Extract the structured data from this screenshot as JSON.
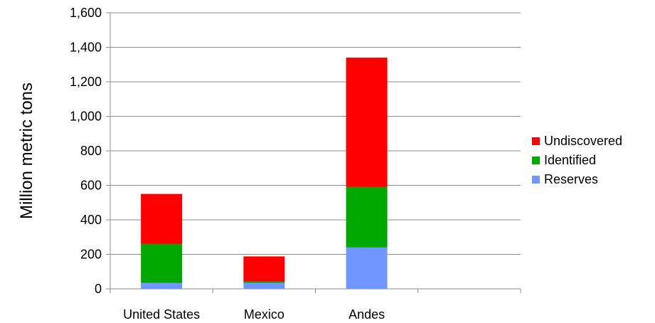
{
  "chart_data": {
    "type": "bar",
    "stacked": true,
    "categories": [
      "United States",
      "Mexico",
      "Andes",
      ""
    ],
    "series": [
      {
        "name": "Reserves",
        "color": "#6f97ff",
        "values": [
          35,
          35,
          240,
          0
        ]
      },
      {
        "name": "Identified",
        "color": "#00a800",
        "values": [
          225,
          8,
          350,
          0
        ]
      },
      {
        "name": "Undiscovered",
        "color": "#ff0000",
        "values": [
          290,
          145,
          750,
          0
        ]
      }
    ],
    "legend_order": [
      "Undiscovered",
      "Identified",
      "Reserves"
    ],
    "legend_position": "right",
    "ylabel": "Million metric tons",
    "xlabel": "",
    "ylim": [
      0,
      1600
    ],
    "yticks": [
      0,
      200,
      400,
      600,
      800,
      1000,
      1200,
      1400,
      1600
    ],
    "ytick_labels": [
      "0",
      "200",
      "400",
      "600",
      "800",
      "1,000",
      "1,200",
      "1,400",
      "1,600"
    ],
    "grid": true
  }
}
